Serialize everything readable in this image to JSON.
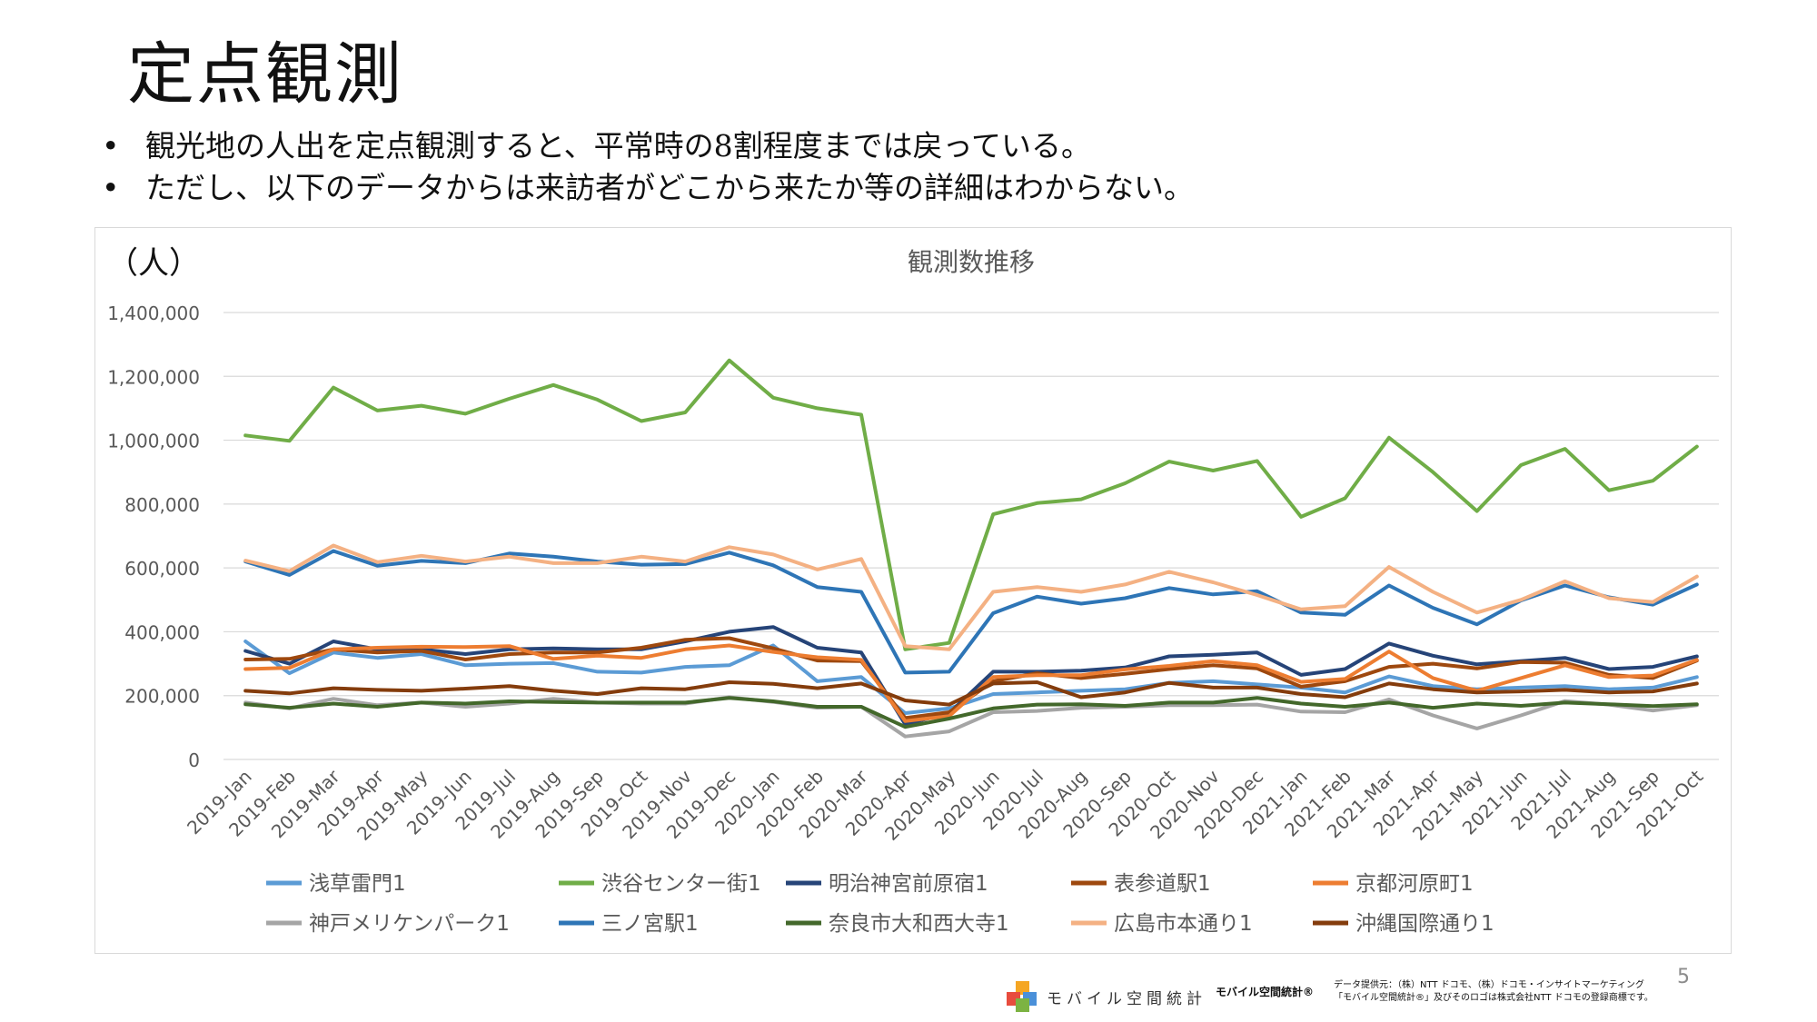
{
  "slide": {
    "title": "定点観測",
    "bullets": [
      "観光地の人出を定点観測すると、平常時の8割程度までは戻っている。",
      "ただし、以下のデータからは来訪者がどこから来たか等の詳細はわからない。"
    ],
    "unit_label": "（人）",
    "page_number": "5"
  },
  "footer": {
    "logo_text": "モバイル空間統計",
    "logo_small": "モバイル空間統計®",
    "credit_line1": "データ提供元：（株）NTT ドコモ、（株）ドコモ・インサイトマーケティング",
    "credit_line2": "「モバイル空間統計®」及びそのロゴは株式会社NTT ドコモの登録商標です。"
  },
  "colors": {
    "axis_text": "#595959",
    "gridline": "#d9d9d9",
    "logo": [
      "#f5a623",
      "#e84c3d",
      "#4a90d9",
      "#7cb342"
    ]
  },
  "chart_data": {
    "type": "line",
    "title": "観測数推移",
    "xlabel": "",
    "ylabel": "",
    "ylim": [
      0,
      1400000
    ],
    "yticks": [
      0,
      200000,
      400000,
      600000,
      800000,
      1000000,
      1200000,
      1400000
    ],
    "ytick_labels": [
      "0",
      "200,000",
      "400,000",
      "600,000",
      "800,000",
      "1,000,000",
      "1,200,000",
      "1,400,000"
    ],
    "grid": true,
    "legend_position": "bottom",
    "categories": [
      "2019-Jan",
      "2019-Feb",
      "2019-Mar",
      "2019-Apr",
      "2019-May",
      "2019-Jun",
      "2019-Jul",
      "2019-Aug",
      "2019-Sep",
      "2019-Oct",
      "2019-Nov",
      "2019-Dec",
      "2020-Jan",
      "2020-Feb",
      "2020-Mar",
      "2020-Apr",
      "2020-May",
      "2020-Jun",
      "2020-Jul",
      "2020-Aug",
      "2020-Sep",
      "2020-Oct",
      "2020-Nov",
      "2020-Dec",
      "2021-Jan",
      "2021-Feb",
      "2021-Mar",
      "2021-Apr",
      "2021-May",
      "2021-Jun",
      "2021-Jul",
      "2021-Aug",
      "2021-Sep",
      "2021-Oct"
    ],
    "series": [
      {
        "name": "浅草雷門1",
        "color": "#5b9bd5",
        "values": [
          370000,
          270000,
          335000,
          318000,
          330000,
          295000,
          300000,
          302000,
          275000,
          272000,
          290000,
          295000,
          357000,
          245000,
          258000,
          145000,
          160000,
          205000,
          210000,
          215000,
          220000,
          240000,
          245000,
          235000,
          225000,
          210000,
          260000,
          230000,
          220000,
          225000,
          230000,
          220000,
          225000,
          258000
        ]
      },
      {
        "name": "渋谷センター街1",
        "color": "#70ad47",
        "values": [
          1015000,
          998000,
          1165000,
          1093000,
          1108000,
          1083000,
          1130000,
          1173000,
          1127000,
          1060000,
          1087000,
          1250000,
          1133000,
          1100000,
          1080000,
          345000,
          365000,
          768000,
          803000,
          815000,
          865000,
          933000,
          905000,
          935000,
          760000,
          818000,
          1008000,
          900000,
          778000,
          922000,
          973000,
          843000,
          873000,
          980000
        ]
      },
      {
        "name": "明治神宮前原宿1",
        "color": "#264478",
        "values": [
          340000,
          300000,
          370000,
          345000,
          345000,
          330000,
          345000,
          348000,
          345000,
          345000,
          370000,
          400000,
          415000,
          350000,
          335000,
          110000,
          145000,
          275000,
          275000,
          278000,
          288000,
          323000,
          328000,
          335000,
          265000,
          283000,
          363000,
          325000,
          298000,
          308000,
          318000,
          283000,
          290000,
          323000
        ]
      },
      {
        "name": "表参道駅1",
        "color": "#9e480e",
        "values": [
          313000,
          315000,
          345000,
          335000,
          340000,
          313000,
          330000,
          335000,
          335000,
          350000,
          375000,
          380000,
          348000,
          310000,
          308000,
          130000,
          148000,
          245000,
          270000,
          255000,
          268000,
          283000,
          295000,
          285000,
          228000,
          245000,
          290000,
          300000,
          285000,
          305000,
          303000,
          265000,
          255000,
          310000
        ]
      },
      {
        "name": "京都河原町1",
        "color": "#ed7d31",
        "values": [
          283000,
          287000,
          345000,
          350000,
          353000,
          352000,
          355000,
          315000,
          325000,
          318000,
          345000,
          357000,
          337000,
          320000,
          312000,
          120000,
          136000,
          258000,
          264000,
          264000,
          282000,
          293000,
          308000,
          295000,
          243000,
          252000,
          338000,
          255000,
          215000,
          255000,
          295000,
          258000,
          263000,
          312000
        ]
      },
      {
        "name": "神戸メリケンパーク1",
        "color": "#a5a5a5",
        "values": [
          178000,
          160000,
          190000,
          170000,
          178000,
          165000,
          175000,
          190000,
          178000,
          175000,
          175000,
          195000,
          180000,
          162000,
          165000,
          72000,
          88000,
          148000,
          152000,
          162000,
          165000,
          170000,
          170000,
          172000,
          150000,
          148000,
          188000,
          138000,
          97000,
          138000,
          183000,
          172000,
          153000,
          170000
        ]
      },
      {
        "name": "三ノ宮駅1",
        "color": "#2e75b6",
        "values": [
          620000,
          578000,
          653000,
          607000,
          622000,
          615000,
          645000,
          635000,
          620000,
          610000,
          612000,
          648000,
          608000,
          540000,
          525000,
          272000,
          275000,
          458000,
          510000,
          488000,
          505000,
          537000,
          517000,
          527000,
          460000,
          453000,
          545000,
          475000,
          423000,
          498000,
          545000,
          508000,
          485000,
          548000
        ]
      },
      {
        "name": "奈良市大和西大寺1",
        "color": "#43682b",
        "values": [
          173000,
          162000,
          175000,
          165000,
          178000,
          175000,
          182000,
          180000,
          178000,
          178000,
          178000,
          193000,
          182000,
          165000,
          165000,
          102000,
          128000,
          160000,
          172000,
          173000,
          168000,
          178000,
          178000,
          193000,
          175000,
          165000,
          178000,
          162000,
          175000,
          168000,
          178000,
          173000,
          167000,
          173000
        ]
      },
      {
        "name": "広島市本通り1",
        "color": "#f4b183",
        "values": [
          623000,
          590000,
          670000,
          618000,
          638000,
          620000,
          635000,
          615000,
          615000,
          635000,
          620000,
          665000,
          642000,
          595000,
          628000,
          355000,
          345000,
          525000,
          540000,
          525000,
          548000,
          588000,
          555000,
          515000,
          470000,
          480000,
          603000,
          525000,
          460000,
          500000,
          558000,
          505000,
          493000,
          573000
        ]
      },
      {
        "name": "沖縄国際通り1",
        "color": "#843c0c",
        "values": [
          215000,
          207000,
          223000,
          218000,
          215000,
          222000,
          230000,
          215000,
          205000,
          223000,
          220000,
          242000,
          237000,
          223000,
          238000,
          185000,
          172000,
          238000,
          242000,
          195000,
          210000,
          240000,
          225000,
          225000,
          205000,
          195000,
          238000,
          220000,
          210000,
          213000,
          218000,
          210000,
          213000,
          238000
        ]
      }
    ]
  }
}
